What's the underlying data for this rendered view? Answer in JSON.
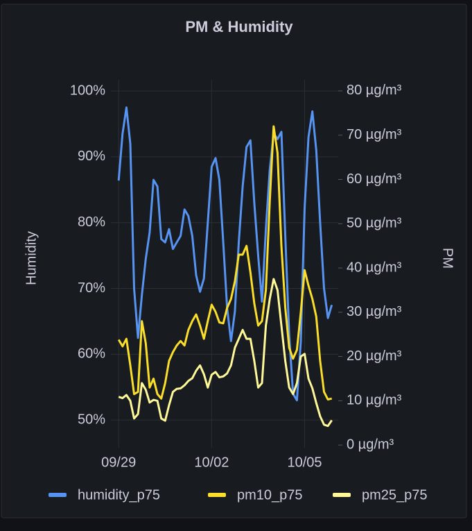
{
  "chart_data": {
    "type": "line",
    "title": "PM & Humidity",
    "y_label": "Humidity",
    "y2_label": "PM",
    "x": [
      0,
      3,
      6,
      9,
      12,
      15,
      18,
      21,
      24,
      27,
      30,
      33,
      36,
      39,
      42,
      45,
      48,
      51,
      54,
      57,
      60,
      63,
      66,
      69,
      72,
      75,
      78,
      81,
      84,
      87,
      90,
      93,
      96,
      99,
      102,
      105,
      108,
      111,
      114,
      117,
      120,
      123,
      126,
      129,
      132,
      135,
      138,
      141,
      144,
      147,
      150,
      153,
      156,
      159,
      162,
      165
    ],
    "xlim": [
      -6,
      170
    ],
    "xticks": [
      {
        "value": 0,
        "label": "09/29"
      },
      {
        "value": 72,
        "label": "10/02"
      },
      {
        "value": 144,
        "label": "10/05"
      }
    ],
    "ylim": [
      45.8,
      101.7
    ],
    "yticks": [
      {
        "value": 50,
        "label": "50%"
      },
      {
        "value": 60,
        "label": "60%"
      },
      {
        "value": 70,
        "label": "70%"
      },
      {
        "value": 80,
        "label": "80%"
      },
      {
        "value": 90,
        "label": "90%"
      },
      {
        "value": 100,
        "label": "100%"
      }
    ],
    "y2lim": [
      -0.6,
      82.5
    ],
    "y2ticks": [
      {
        "value": 0,
        "label": "0 µg/m³"
      },
      {
        "value": 10,
        "label": "10 µg/m³"
      },
      {
        "value": 20,
        "label": "20 µg/m³"
      },
      {
        "value": 30,
        "label": "30 µg/m³"
      },
      {
        "value": 40,
        "label": "40 µg/m³"
      },
      {
        "value": 50,
        "label": "50 µg/m³"
      },
      {
        "value": 60,
        "label": "60 µg/m³"
      },
      {
        "value": 70,
        "label": "70 µg/m³"
      },
      {
        "value": 80,
        "label": "80 µg/m³"
      }
    ],
    "grid": true,
    "legend": "bottom",
    "series": [
      {
        "name": "humidity_p75",
        "color": "#5794f2",
        "axis": "y",
        "values": [
          86.4,
          93.5,
          97.5,
          92,
          70,
          62.5,
          69,
          74.5,
          78.5,
          86.5,
          85.5,
          77.5,
          77,
          79,
          76,
          77,
          78,
          82,
          81,
          78,
          72,
          69.5,
          71.5,
          80,
          88.5,
          89.8,
          86.5,
          77,
          67,
          62,
          66.5,
          77,
          85.5,
          91.5,
          92.5,
          83,
          75,
          68,
          79,
          88,
          93.5,
          92.7,
          93.8,
          78,
          63,
          54,
          53,
          62,
          82.2,
          93,
          96.9,
          91,
          80,
          70,
          65.5,
          67.5
        ]
      },
      {
        "name": "pm10_p75",
        "color": "#fade2a",
        "axis": "y2",
        "values": [
          23.8,
          22.3,
          24,
          18,
          11.5,
          12,
          28,
          23,
          13,
          15,
          11.5,
          10.5,
          14,
          19,
          21,
          22.5,
          23.5,
          22.5,
          26,
          28,
          29.5,
          27,
          24,
          28,
          31.7,
          30.1,
          27.7,
          27.5,
          31,
          33,
          37,
          43,
          43,
          45,
          39,
          32,
          27,
          28,
          35,
          55,
          72,
          66,
          45,
          31,
          22,
          19.5,
          21.5,
          30,
          39.5,
          36,
          33,
          29,
          19,
          12,
          10.3,
          10.5
        ]
      },
      {
        "name": "pm25_p75",
        "color": "#fff899",
        "axis": "y2",
        "values": [
          10.9,
          10.6,
          11.3,
          10,
          6,
          7,
          14,
          12.5,
          9.6,
          10.2,
          10,
          6,
          5.5,
          9,
          12,
          12.7,
          12.8,
          13.5,
          14.5,
          15.1,
          16.8,
          18,
          16,
          13,
          15.9,
          16.5,
          15.3,
          15.5,
          16.2,
          18,
          22,
          24,
          26,
          24,
          24,
          19,
          13,
          14,
          27,
          33,
          37.5,
          35,
          27,
          19,
          13,
          11.5,
          14,
          20,
          20.6,
          15,
          12.8,
          9.5,
          6.5,
          4.6,
          4.3,
          5.6
        ]
      }
    ]
  }
}
